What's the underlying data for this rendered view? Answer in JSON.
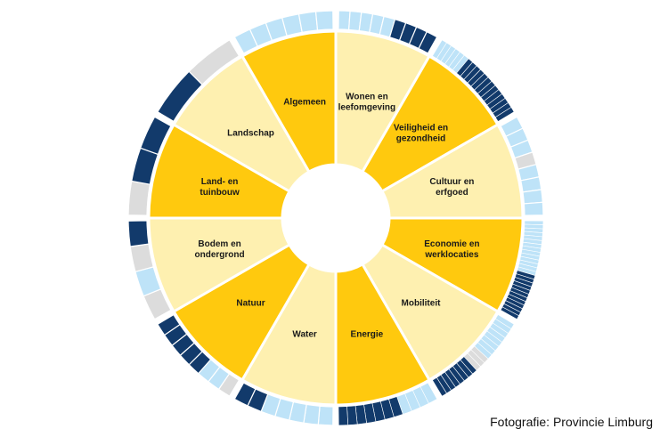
{
  "colors": {
    "yellow": "#FFC90E",
    "cream": "#FEF0B0",
    "navy": "#123A6B",
    "light_blue": "#BEE3F8",
    "grey": "#DCDCDC",
    "separator": "#FFFFFF"
  },
  "sectors": [
    {
      "id": "wonen",
      "lines": [
        "Wonen en",
        "leefomgeving"
      ],
      "fill": "cream",
      "ring": [
        [
          "light_blue",
          5
        ],
        [
          "navy",
          4
        ]
      ]
    },
    {
      "id": "veiligheid",
      "lines": [
        "Veiligheid en",
        "gezondheid"
      ],
      "fill": "yellow",
      "ring": [
        [
          "light_blue",
          6
        ],
        [
          "navy",
          13
        ]
      ]
    },
    {
      "id": "cultuur",
      "lines": [
        "Cultuur en",
        "erfgoed"
      ],
      "fill": "cream",
      "ring": [
        [
          "light_blue",
          3
        ],
        [
          "grey",
          1
        ],
        [
          "light_blue",
          4
        ]
      ]
    },
    {
      "id": "economie",
      "lines": [
        "Economie en",
        "werklocaties"
      ],
      "fill": "yellow",
      "ring": [
        [
          "light_blue",
          14
        ],
        [
          "navy",
          12
        ]
      ]
    },
    {
      "id": "mobiliteit",
      "lines": [
        "Mobiliteit"
      ],
      "fill": "cream",
      "ring": [
        [
          "light_blue",
          8
        ],
        [
          "grey",
          3
        ],
        [
          "navy",
          8
        ]
      ]
    },
    {
      "id": "energie",
      "lines": [
        "Energie"
      ],
      "fill": "yellow",
      "ring": [
        [
          "light_blue",
          4
        ],
        [
          "navy",
          7
        ]
      ]
    },
    {
      "id": "water",
      "lines": [
        "Water"
      ],
      "fill": "cream",
      "ring": [
        [
          "light_blue",
          5
        ],
        [
          "navy",
          2
        ]
      ]
    },
    {
      "id": "natuur",
      "lines": [
        "Natuur"
      ],
      "fill": "yellow",
      "ring": [
        [
          "grey",
          1
        ],
        [
          "light_blue",
          2
        ],
        [
          "navy",
          5
        ]
      ]
    },
    {
      "id": "bodem",
      "lines": [
        "Bodem en",
        "ondergrond"
      ],
      "fill": "cream",
      "ring": [
        [
          "grey",
          1
        ],
        [
          "light_blue",
          1
        ],
        [
          "grey",
          1
        ],
        [
          "navy",
          1
        ]
      ]
    },
    {
      "id": "land-tuinbouw",
      "lines": [
        "Land- en",
        "tuinbouw"
      ],
      "fill": "yellow",
      "ring": [
        [
          "grey",
          1
        ],
        [
          "navy",
          2
        ]
      ]
    },
    {
      "id": "landschap",
      "lines": [
        "Landschap"
      ],
      "fill": "cream",
      "ring": [
        [
          "navy",
          1
        ],
        [
          "grey",
          1
        ]
      ]
    },
    {
      "id": "algemeen",
      "lines": [
        "Algemeen"
      ],
      "fill": "yellow",
      "ring": [
        [
          "light_blue",
          3
        ],
        [
          "light_blue",
          3
        ]
      ]
    }
  ],
  "credit": "Fotografie: Provincie Limburg"
}
